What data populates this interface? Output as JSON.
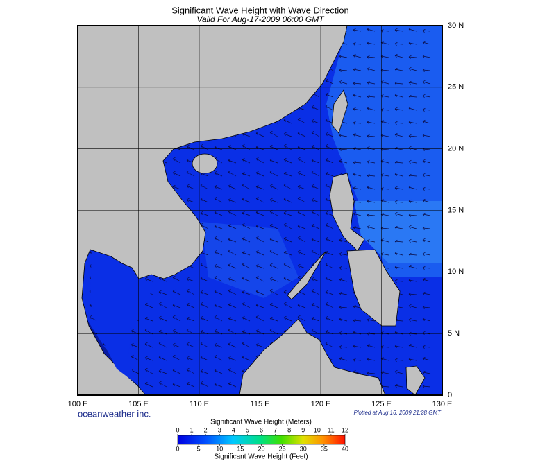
{
  "header": {
    "title": "Significant Wave Height with Wave Direction",
    "subtitle": "Valid For Aug-17-2009 06:00 GMT"
  },
  "map": {
    "lonlim": [
      100,
      130
    ],
    "latlim": [
      0,
      30
    ],
    "lon_ticks": [
      {
        "value": 100,
        "label": "100 E"
      },
      {
        "value": 105,
        "label": "105 E"
      },
      {
        "value": 110,
        "label": "110 E"
      },
      {
        "value": 115,
        "label": "115 E"
      },
      {
        "value": 120,
        "label": "120 E"
      },
      {
        "value": 125,
        "label": "125 E"
      },
      {
        "value": 130,
        "label": "130 E"
      }
    ],
    "lat_ticks": [
      {
        "value": 0,
        "label": "0"
      },
      {
        "value": 5,
        "label": "5 N"
      },
      {
        "value": 10,
        "label": "10 N"
      },
      {
        "value": 15,
        "label": "15 N"
      },
      {
        "value": 20,
        "label": "20 N"
      },
      {
        "value": 25,
        "label": "25 N"
      },
      {
        "value": 30,
        "label": "30 N"
      }
    ],
    "credit": "oceanweather inc.",
    "plotted": "Plotted at Aug 16, 2009 21:28 GMT"
  },
  "colorbar": {
    "meters": {
      "title": "Significant Wave Height (Meters)",
      "lim": [
        0,
        12
      ],
      "ticks": [
        0,
        1,
        2,
        3,
        4,
        5,
        6,
        7,
        8,
        9,
        10,
        11,
        12
      ]
    },
    "feet": {
      "title": "Significant Wave Height (Feet)",
      "lim": [
        0,
        40
      ],
      "ticks": [
        0,
        5,
        10,
        15,
        20,
        25,
        30,
        35,
        40
      ]
    }
  }
}
